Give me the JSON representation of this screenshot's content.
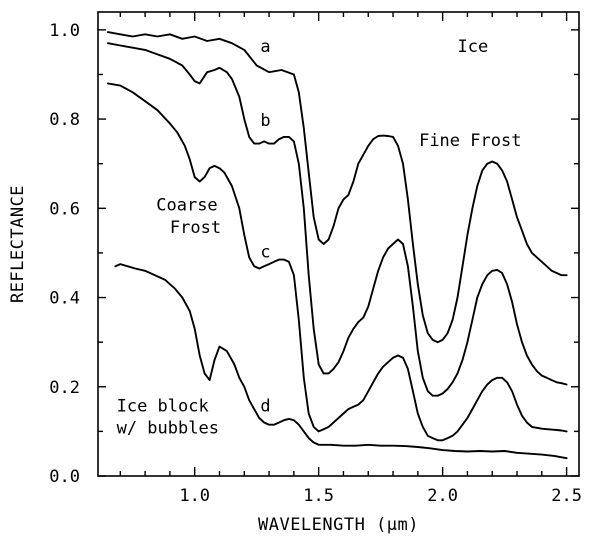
{
  "chart_data": {
    "type": "line",
    "xlabel": "WAVELENGTH (µm)",
    "ylabel": "REFLECTANCE",
    "xlim": [
      0.61,
      2.55
    ],
    "ylim": [
      0.0,
      1.04
    ],
    "x_ticks": [
      {
        "value": 1.0,
        "label": "1.0"
      },
      {
        "value": 1.5,
        "label": "1.5"
      },
      {
        "value": 2.0,
        "label": "2.0"
      },
      {
        "value": 2.5,
        "label": "2.5"
      }
    ],
    "y_ticks": [
      {
        "value": 0.0,
        "label": "0.0"
      },
      {
        "value": 0.2,
        "label": "0.2"
      },
      {
        "value": 0.4,
        "label": "0.4"
      },
      {
        "value": 0.6,
        "label": "0.6"
      },
      {
        "value": 0.8,
        "label": "0.8"
      },
      {
        "value": 1.0,
        "label": "1.0"
      }
    ],
    "grid": false,
    "legend": "none",
    "series": [
      {
        "id": "a",
        "x": [
          0.65,
          0.7,
          0.75,
          0.8,
          0.85,
          0.9,
          0.95,
          1.0,
          1.05,
          1.1,
          1.15,
          1.2,
          1.25,
          1.3,
          1.35,
          1.4,
          1.42,
          1.44,
          1.46,
          1.48,
          1.5,
          1.52,
          1.54,
          1.56,
          1.58,
          1.6,
          1.62,
          1.64,
          1.66,
          1.68,
          1.7,
          1.72,
          1.74,
          1.76,
          1.78,
          1.8,
          1.82,
          1.84,
          1.86,
          1.88,
          1.9,
          1.92,
          1.94,
          1.96,
          1.98,
          2.0,
          2.02,
          2.04,
          2.06,
          2.08,
          2.1,
          2.12,
          2.14,
          2.16,
          2.18,
          2.2,
          2.22,
          2.24,
          2.26,
          2.28,
          2.3,
          2.32,
          2.34,
          2.36,
          2.38,
          2.4,
          2.42,
          2.44,
          2.46,
          2.48,
          2.5
        ],
        "y": [
          0.995,
          0.99,
          0.985,
          0.99,
          0.985,
          0.99,
          0.98,
          0.985,
          0.975,
          0.98,
          0.97,
          0.955,
          0.92,
          0.905,
          0.91,
          0.9,
          0.86,
          0.78,
          0.68,
          0.58,
          0.53,
          0.52,
          0.53,
          0.56,
          0.6,
          0.62,
          0.63,
          0.66,
          0.7,
          0.72,
          0.74,
          0.755,
          0.762,
          0.763,
          0.762,
          0.76,
          0.74,
          0.7,
          0.62,
          0.52,
          0.43,
          0.36,
          0.32,
          0.305,
          0.3,
          0.305,
          0.32,
          0.35,
          0.4,
          0.47,
          0.54,
          0.6,
          0.65,
          0.685,
          0.7,
          0.705,
          0.7,
          0.685,
          0.66,
          0.62,
          0.58,
          0.55,
          0.52,
          0.5,
          0.49,
          0.48,
          0.47,
          0.46,
          0.455,
          0.45,
          0.45
        ]
      },
      {
        "id": "b",
        "x": [
          0.65,
          0.7,
          0.75,
          0.8,
          0.85,
          0.9,
          0.95,
          0.98,
          1.0,
          1.02,
          1.05,
          1.08,
          1.1,
          1.13,
          1.15,
          1.18,
          1.2,
          1.22,
          1.24,
          1.26,
          1.28,
          1.3,
          1.32,
          1.34,
          1.36,
          1.38,
          1.4,
          1.42,
          1.44,
          1.46,
          1.48,
          1.5,
          1.52,
          1.54,
          1.56,
          1.58,
          1.6,
          1.62,
          1.64,
          1.66,
          1.68,
          1.7,
          1.72,
          1.74,
          1.76,
          1.78,
          1.8,
          1.82,
          1.84,
          1.86,
          1.88,
          1.9,
          1.92,
          1.94,
          1.96,
          1.98,
          2.0,
          2.02,
          2.04,
          2.06,
          2.08,
          2.1,
          2.12,
          2.14,
          2.16,
          2.18,
          2.2,
          2.22,
          2.24,
          2.26,
          2.28,
          2.3,
          2.32,
          2.34,
          2.36,
          2.38,
          2.4,
          2.42,
          2.44,
          2.46,
          2.48,
          2.5
        ],
        "y": [
          0.97,
          0.965,
          0.96,
          0.955,
          0.945,
          0.935,
          0.92,
          0.9,
          0.885,
          0.88,
          0.905,
          0.91,
          0.915,
          0.905,
          0.89,
          0.85,
          0.8,
          0.76,
          0.745,
          0.745,
          0.75,
          0.745,
          0.745,
          0.755,
          0.76,
          0.76,
          0.75,
          0.7,
          0.6,
          0.45,
          0.33,
          0.25,
          0.23,
          0.23,
          0.24,
          0.255,
          0.28,
          0.31,
          0.33,
          0.345,
          0.355,
          0.38,
          0.42,
          0.46,
          0.49,
          0.51,
          0.52,
          0.53,
          0.52,
          0.47,
          0.38,
          0.28,
          0.22,
          0.19,
          0.18,
          0.18,
          0.185,
          0.195,
          0.21,
          0.23,
          0.26,
          0.3,
          0.35,
          0.4,
          0.43,
          0.45,
          0.46,
          0.462,
          0.455,
          0.43,
          0.39,
          0.34,
          0.3,
          0.27,
          0.25,
          0.235,
          0.225,
          0.22,
          0.215,
          0.21,
          0.208,
          0.205
        ]
      },
      {
        "id": "c",
        "x": [
          0.65,
          0.7,
          0.75,
          0.8,
          0.85,
          0.9,
          0.93,
          0.96,
          0.98,
          1.0,
          1.02,
          1.04,
          1.06,
          1.08,
          1.1,
          1.12,
          1.15,
          1.18,
          1.2,
          1.22,
          1.24,
          1.26,
          1.28,
          1.3,
          1.32,
          1.34,
          1.36,
          1.38,
          1.4,
          1.42,
          1.44,
          1.46,
          1.48,
          1.5,
          1.52,
          1.54,
          1.56,
          1.58,
          1.6,
          1.62,
          1.64,
          1.66,
          1.68,
          1.7,
          1.72,
          1.74,
          1.76,
          1.78,
          1.8,
          1.82,
          1.84,
          1.86,
          1.88,
          1.9,
          1.92,
          1.94,
          1.96,
          1.98,
          2.0,
          2.02,
          2.04,
          2.06,
          2.08,
          2.1,
          2.12,
          2.14,
          2.16,
          2.18,
          2.2,
          2.22,
          2.24,
          2.26,
          2.28,
          2.3,
          2.32,
          2.34,
          2.36,
          2.38,
          2.4,
          2.42,
          2.44,
          2.46,
          2.48,
          2.5
        ],
        "y": [
          0.88,
          0.875,
          0.86,
          0.84,
          0.82,
          0.79,
          0.77,
          0.74,
          0.71,
          0.67,
          0.66,
          0.67,
          0.69,
          0.695,
          0.69,
          0.68,
          0.65,
          0.6,
          0.54,
          0.49,
          0.47,
          0.465,
          0.47,
          0.475,
          0.48,
          0.485,
          0.485,
          0.48,
          0.45,
          0.35,
          0.22,
          0.14,
          0.11,
          0.1,
          0.105,
          0.11,
          0.12,
          0.13,
          0.14,
          0.15,
          0.155,
          0.16,
          0.17,
          0.19,
          0.21,
          0.23,
          0.245,
          0.255,
          0.265,
          0.27,
          0.265,
          0.24,
          0.19,
          0.14,
          0.11,
          0.09,
          0.085,
          0.08,
          0.08,
          0.085,
          0.09,
          0.1,
          0.115,
          0.13,
          0.15,
          0.17,
          0.19,
          0.205,
          0.215,
          0.22,
          0.22,
          0.21,
          0.19,
          0.16,
          0.135,
          0.12,
          0.11,
          0.108,
          0.106,
          0.105,
          0.104,
          0.103,
          0.102,
          0.1
        ]
      },
      {
        "id": "d",
        "x": [
          0.68,
          0.7,
          0.73,
          0.76,
          0.8,
          0.84,
          0.88,
          0.92,
          0.95,
          0.98,
          1.0,
          1.02,
          1.04,
          1.06,
          1.08,
          1.1,
          1.13,
          1.16,
          1.18,
          1.2,
          1.22,
          1.24,
          1.26,
          1.28,
          1.3,
          1.32,
          1.34,
          1.36,
          1.38,
          1.4,
          1.42,
          1.44,
          1.46,
          1.48,
          1.5,
          1.55,
          1.6,
          1.65,
          1.7,
          1.75,
          1.8,
          1.85,
          1.9,
          1.95,
          2.0,
          2.05,
          2.1,
          2.15,
          2.2,
          2.25,
          2.3,
          2.35,
          2.4,
          2.45,
          2.5
        ],
        "y": [
          0.47,
          0.475,
          0.47,
          0.465,
          0.46,
          0.45,
          0.44,
          0.42,
          0.4,
          0.37,
          0.33,
          0.27,
          0.23,
          0.215,
          0.26,
          0.29,
          0.28,
          0.25,
          0.22,
          0.2,
          0.17,
          0.15,
          0.13,
          0.12,
          0.115,
          0.115,
          0.12,
          0.125,
          0.128,
          0.125,
          0.115,
          0.1,
          0.085,
          0.075,
          0.07,
          0.07,
          0.068,
          0.068,
          0.07,
          0.068,
          0.068,
          0.067,
          0.065,
          0.062,
          0.058,
          0.056,
          0.055,
          0.056,
          0.055,
          0.056,
          0.052,
          0.05,
          0.048,
          0.045,
          0.04
        ]
      }
    ],
    "annotations": [
      {
        "id": "label-a",
        "text": "a",
        "x": 1.265,
        "y": 0.95,
        "anchor": "start",
        "box": false
      },
      {
        "id": "label-b",
        "text": "b",
        "x": 1.265,
        "y": 0.785,
        "anchor": "start",
        "box": false
      },
      {
        "id": "label-c",
        "text": "c",
        "x": 1.265,
        "y": 0.49,
        "anchor": "start",
        "box": false
      },
      {
        "id": "label-d",
        "text": "d",
        "x": 1.265,
        "y": 0.145,
        "anchor": "start",
        "box": false
      },
      {
        "id": "label-ice",
        "text": "Ice",
        "x": 2.06,
        "y": 0.95,
        "anchor": "start",
        "box": false
      },
      {
        "id": "label-fine-frost",
        "text": "Fine Frost",
        "x": 1.905,
        "y": 0.74,
        "anchor": "start",
        "box": false
      },
      {
        "id": "label-coarse",
        "text": "Coarse",
        "x": 0.845,
        "y": 0.595,
        "anchor": "start",
        "box": false
      },
      {
        "id": "label-frost",
        "text": "Frost",
        "x": 0.9,
        "y": 0.545,
        "anchor": "start",
        "box": false
      },
      {
        "id": "label-ice-block",
        "text": "Ice block",
        "x": 0.685,
        "y": 0.145,
        "anchor": "start",
        "box": true
      },
      {
        "id": "label-bubbles",
        "text": "w/ bubbles",
        "x": 0.685,
        "y": 0.095,
        "anchor": "start",
        "box": true
      }
    ]
  }
}
